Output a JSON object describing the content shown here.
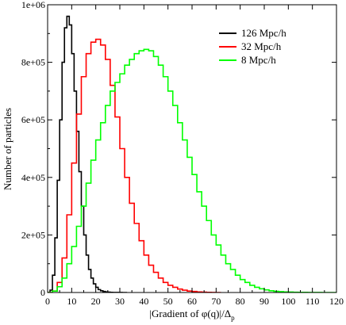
{
  "chart_data": {
    "type": "line",
    "step": true,
    "xlabel": "|Gradient of φ(q)|/Δ",
    "xlabel_sub": "p",
    "ylabel": "Number of particles",
    "xlim": [
      0,
      120
    ],
    "ylim": [
      0,
      1000000
    ],
    "x_ticks": [
      0,
      10,
      20,
      30,
      40,
      50,
      60,
      70,
      80,
      90,
      100,
      110,
      120
    ],
    "x_tick_labels": [
      "0",
      "10",
      "20",
      "30",
      "40",
      "50",
      "60",
      "70",
      "80",
      "90",
      "100",
      "110",
      "120"
    ],
    "y_ticks": [
      0,
      200000,
      400000,
      600000,
      800000,
      1000000
    ],
    "y_tick_labels": [
      "0",
      "2e+05",
      "4e+05",
      "6e+05",
      "8e+05",
      "1e+06"
    ],
    "grid": false,
    "legend_position": "top-right",
    "series": [
      {
        "name": "126 Mpc/h",
        "color": "#000000",
        "x": [
          0,
          1,
          2,
          3,
          4,
          5,
          6,
          7,
          8,
          9,
          10,
          11,
          12,
          13,
          14,
          15,
          16,
          17,
          18,
          19,
          20,
          21,
          22,
          23,
          24,
          25,
          26,
          27,
          28,
          29,
          30,
          31,
          32
        ],
        "values": [
          0,
          8000,
          60000,
          190000,
          390000,
          600000,
          800000,
          920000,
          960000,
          930000,
          830000,
          700000,
          560000,
          420000,
          300000,
          200000,
          130000,
          80000,
          50000,
          30000,
          18000,
          10000,
          6000,
          3500,
          2000,
          1200,
          600,
          300,
          150,
          80,
          40,
          20,
          0
        ]
      },
      {
        "name": "32 Mpc/h",
        "color": "#ff0000",
        "x": [
          0,
          2,
          4,
          6,
          8,
          10,
          12,
          14,
          16,
          18,
          20,
          22,
          24,
          26,
          28,
          30,
          32,
          34,
          36,
          38,
          40,
          42,
          44,
          46,
          48,
          50,
          52,
          54,
          56,
          58,
          60,
          62,
          64,
          66,
          68,
          70
        ],
        "values": [
          0,
          5000,
          35000,
          120000,
          270000,
          450000,
          620000,
          750000,
          830000,
          870000,
          880000,
          860000,
          810000,
          720000,
          610000,
          500000,
          400000,
          310000,
          240000,
          180000,
          130000,
          95000,
          70000,
          50000,
          35000,
          25000,
          18000,
          12000,
          8000,
          5000,
          3500,
          2000,
          1200,
          600,
          300,
          0
        ]
      },
      {
        "name": "8 Mpc/h",
        "color": "#00ff00",
        "x": [
          0,
          2,
          4,
          6,
          8,
          10,
          12,
          14,
          16,
          18,
          20,
          22,
          24,
          26,
          28,
          30,
          32,
          34,
          36,
          38,
          40,
          42,
          44,
          46,
          48,
          50,
          52,
          54,
          56,
          58,
          60,
          62,
          64,
          66,
          68,
          70,
          72,
          74,
          76,
          78,
          80,
          82,
          84,
          86,
          88,
          90,
          92,
          94,
          96,
          98,
          100,
          102,
          104,
          106,
          108,
          110,
          112,
          114,
          116,
          118
        ],
        "values": [
          0,
          5000,
          20000,
          50000,
          100000,
          160000,
          230000,
          300000,
          380000,
          460000,
          530000,
          590000,
          650000,
          700000,
          730000,
          760000,
          790000,
          810000,
          830000,
          840000,
          845000,
          840000,
          820000,
          790000,
          750000,
          700000,
          650000,
          590000,
          530000,
          470000,
          410000,
          350000,
          300000,
          250000,
          200000,
          165000,
          130000,
          100000,
          80000,
          60000,
          45000,
          35000,
          25000,
          18000,
          13000,
          9000,
          6000,
          4000,
          3000,
          2000,
          1500,
          1000,
          600,
          400,
          200,
          100,
          50,
          20,
          10,
          0
        ]
      }
    ]
  }
}
